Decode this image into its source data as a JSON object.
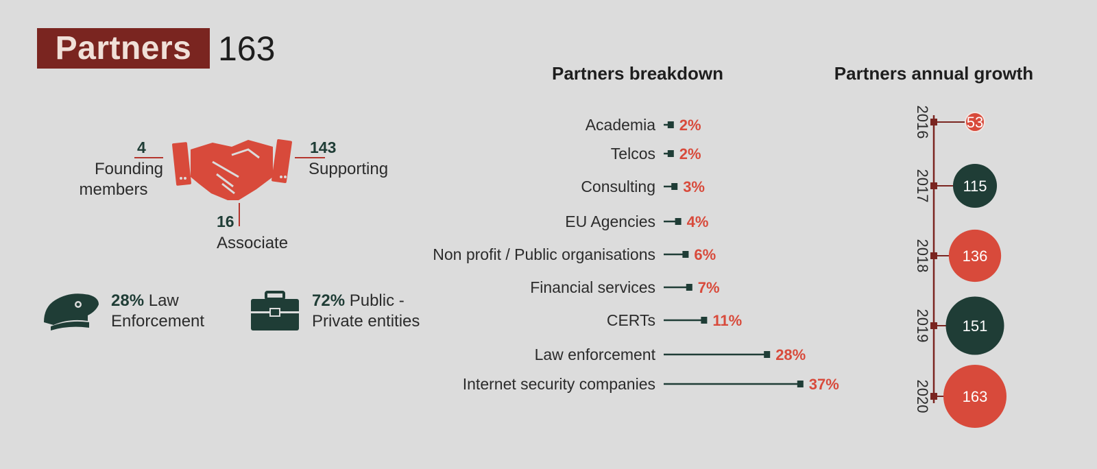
{
  "header": {
    "label": "Partners",
    "total": "163"
  },
  "membership": {
    "founding": {
      "count": "4",
      "label_line1": "Founding",
      "label_line2": "members"
    },
    "supporting": {
      "count": "143",
      "label": "Supporting"
    },
    "associate": {
      "count": "16",
      "label": "Associate"
    }
  },
  "categories": {
    "law": {
      "pct": "28%",
      "label_line1": "Law",
      "label_line2": "Enforcement"
    },
    "public_private": {
      "pct": "72%",
      "label_line1": "Public -",
      "label_line2": "Private entities"
    }
  },
  "colors": {
    "dark_green": "#1f3d36",
    "red": "#d84a3b",
    "maroon": "#7a2520"
  },
  "chart_data": [
    {
      "type": "bar",
      "title": "Partners breakdown",
      "categories": [
        "Academia",
        "Telcos",
        "Consulting",
        "EU Agencies",
        "Non profit / Public organisations",
        "Financial services",
        "CERTs",
        "Law enforcement",
        "Internet security companies"
      ],
      "values": [
        2,
        2,
        3,
        4,
        6,
        7,
        11,
        28,
        37
      ],
      "value_labels": [
        "2%",
        "2%",
        "3%",
        "4%",
        "6%",
        "7%",
        "11%",
        "28%",
        "37%"
      ]
    },
    {
      "type": "scatter",
      "title": "Partners annual growth",
      "categories": [
        "2016",
        "2017",
        "2018",
        "2019",
        "2020"
      ],
      "values": [
        53,
        115,
        136,
        151,
        163
      ],
      "value_labels": [
        "53",
        "115",
        "136",
        "151",
        "163"
      ]
    }
  ]
}
